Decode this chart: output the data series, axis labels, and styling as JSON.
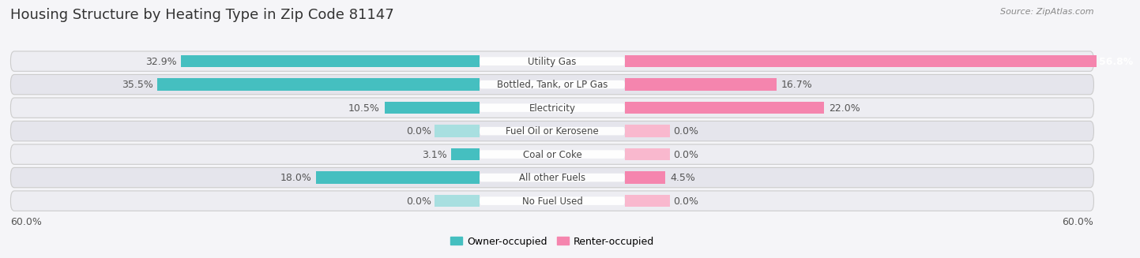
{
  "title": "Housing Structure by Heating Type in Zip Code 81147",
  "source": "Source: ZipAtlas.com",
  "categories": [
    "Utility Gas",
    "Bottled, Tank, or LP Gas",
    "Electricity",
    "Fuel Oil or Kerosene",
    "Coal or Coke",
    "All other Fuels",
    "No Fuel Used"
  ],
  "owner_values": [
    32.9,
    35.5,
    10.5,
    0.0,
    3.1,
    18.0,
    0.0
  ],
  "renter_values": [
    56.8,
    16.7,
    22.0,
    0.0,
    0.0,
    4.5,
    0.0
  ],
  "owner_color": "#45bfc0",
  "renter_color": "#f585ae",
  "owner_color_light": "#a8dfe0",
  "renter_color_light": "#f9b8ce",
  "owner_label": "Owner-occupied",
  "renter_label": "Renter-occupied",
  "axis_max": 60.0,
  "zero_bar_size": 5.0,
  "bar_height": 0.52,
  "bg_color": "#f5f5f8",
  "row_bg_even": "#ededf2",
  "row_bg_odd": "#e5e5ec",
  "title_fontsize": 13,
  "source_fontsize": 8,
  "label_fontsize": 9,
  "value_fontsize": 9,
  "category_fontsize": 8.5
}
